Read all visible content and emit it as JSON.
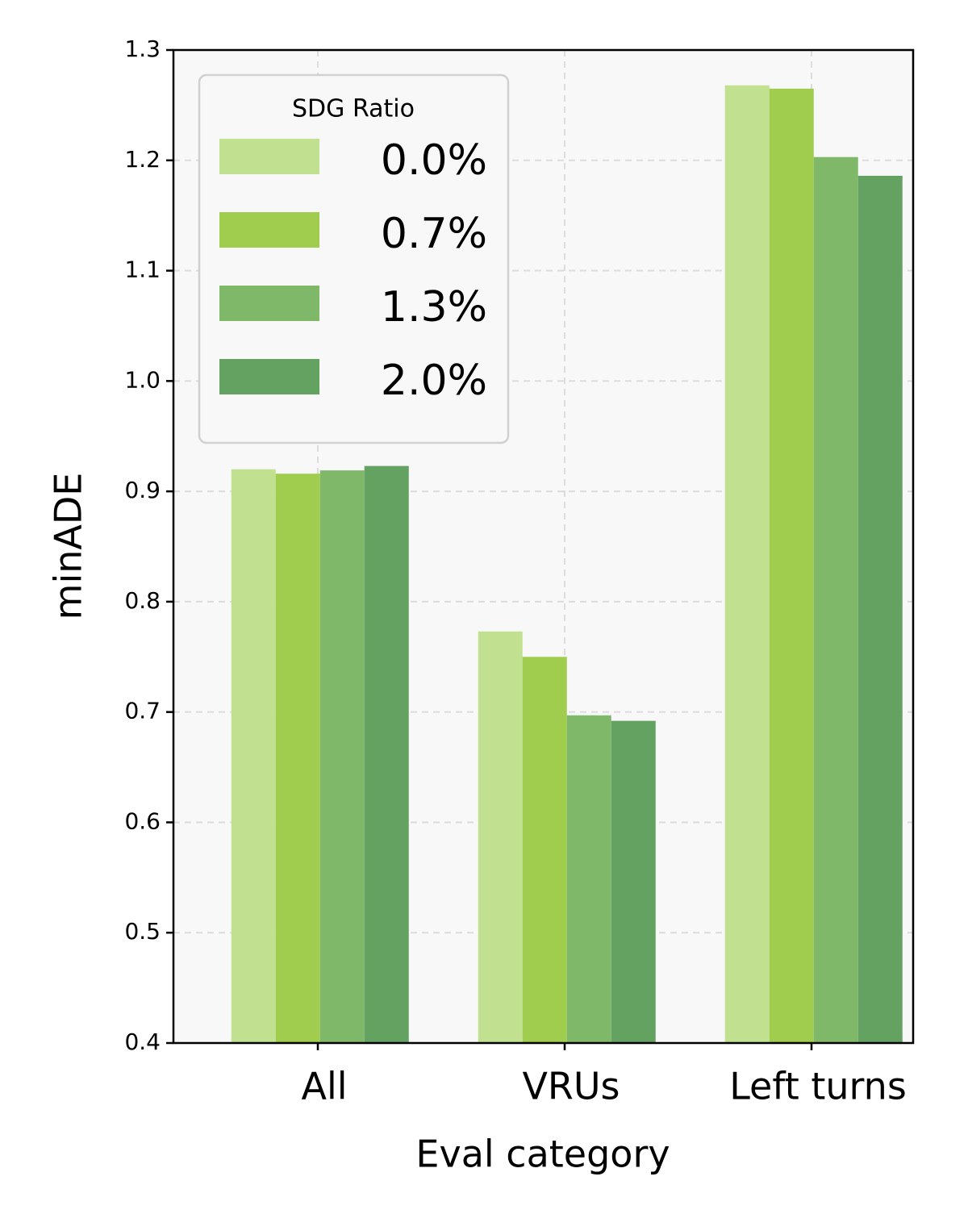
{
  "chart_data": {
    "type": "bar",
    "title": "",
    "xlabel": "Eval category",
    "ylabel": "minADE",
    "categories": [
      "All",
      "VRUs",
      "Left turns"
    ],
    "ylim": [
      0.4,
      1.3
    ],
    "yticks": [
      "0.4",
      "0.5",
      "0.6",
      "0.7",
      "0.8",
      "0.9",
      "1.0",
      "1.1",
      "1.2",
      "1.3"
    ],
    "ytick_values": [
      0.4,
      0.5,
      0.6,
      0.7,
      0.8,
      0.9,
      1.0,
      1.1,
      1.2,
      1.3
    ],
    "grid": true,
    "legend": {
      "title": "SDG Ratio",
      "position": "top-left"
    },
    "series": [
      {
        "name": "0.0%",
        "color": "#c1e190",
        "values": [
          0.92,
          0.773,
          1.268
        ]
      },
      {
        "name": "0.7%",
        "color": "#a0cd4e",
        "values": [
          0.916,
          0.75,
          1.265
        ]
      },
      {
        "name": "1.3%",
        "color": "#80b86a",
        "values": [
          0.919,
          0.697,
          1.203
        ]
      },
      {
        "name": "2.0%",
        "color": "#63a260",
        "values": [
          0.923,
          0.692,
          1.186
        ]
      }
    ]
  }
}
